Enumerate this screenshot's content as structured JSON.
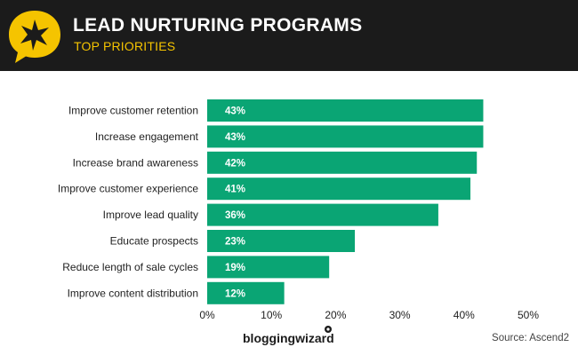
{
  "header": {
    "title": "LEAD NURTURING PROGRAMS",
    "subtitle": "TOP PRIORITIES",
    "logo_icon": "star-speech-bubble-icon"
  },
  "colors": {
    "header_bg": "#1b1b1b",
    "accent_yellow": "#f5c400",
    "bar_green": "#0aa574"
  },
  "chart_data": {
    "type": "bar",
    "orientation": "horizontal",
    "categories": [
      "Improve customer retention",
      "Increase engagement",
      "Increase brand awareness",
      "Improve customer experience",
      "Improve lead quality",
      "Educate prospects",
      "Reduce length of sale cycles",
      "Improve content distribution"
    ],
    "values": [
      43,
      43,
      42,
      41,
      36,
      23,
      19,
      12
    ],
    "value_labels": [
      "43%",
      "43%",
      "42%",
      "41%",
      "36%",
      "23%",
      "19%",
      "12%"
    ],
    "xlim": [
      0,
      50
    ],
    "xticks": [
      "0%",
      "10%",
      "20%",
      "30%",
      "40%",
      "50%"
    ],
    "grid": false,
    "legend": "none"
  },
  "footer": {
    "brand": "bloggingwizard",
    "source": "Source: Ascend2"
  }
}
